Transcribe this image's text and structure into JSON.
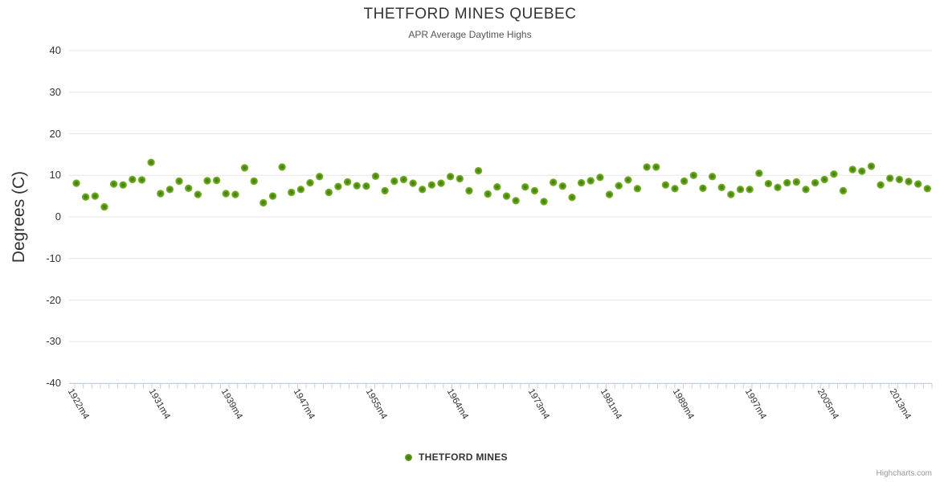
{
  "chart": {
    "title": "THETFORD MINES QUEBEC",
    "subtitle": "APR Average Daytime Highs"
  },
  "credits": {
    "label": "Highcharts.com"
  },
  "chart_data": {
    "type": "scatter",
    "title": "THETFORD MINES QUEBEC",
    "subtitle": "APR Average Daytime Highs",
    "xlabel": "",
    "ylabel": "Degrees (C)",
    "ylim": [
      -40,
      40
    ],
    "ytick_labels": [
      "40",
      "30",
      "20",
      "10",
      "0",
      "-10",
      "-20",
      "-30",
      "-40"
    ],
    "grid": true,
    "legend_position": "bottom-center",
    "x_start_year": 1922,
    "x_label_suffix": "m4",
    "xtick_years": [
      1922,
      1931,
      1939,
      1947,
      1955,
      1964,
      1973,
      1981,
      1989,
      1997,
      2005,
      2013
    ],
    "series": [
      {
        "name": "THETFORD MINES",
        "values": [
          8.1,
          4.8,
          5.0,
          2.4,
          7.9,
          7.7,
          9.0,
          8.9,
          13.1,
          5.6,
          6.6,
          8.6,
          6.9,
          5.4,
          8.7,
          8.8,
          5.6,
          5.4,
          11.8,
          8.6,
          3.4,
          5.0,
          12.0,
          5.9,
          6.6,
          8.2,
          9.7,
          5.9,
          7.3,
          8.4,
          7.5,
          7.4,
          9.8,
          6.3,
          8.6,
          9.0,
          8.1,
          6.6,
          7.7,
          8.1,
          9.7,
          9.2,
          6.3,
          11.1,
          5.5,
          7.2,
          5.0,
          3.9,
          7.2,
          6.3,
          3.7,
          8.3,
          7.4,
          4.7,
          8.2,
          8.7,
          9.5,
          5.4,
          7.5,
          8.9,
          6.8,
          12.0,
          12.0,
          7.7,
          6.8,
          8.6,
          10.0,
          6.9,
          9.7,
          7.1,
          5.4,
          6.6,
          6.6,
          10.5,
          8.0,
          7.1,
          8.2,
          8.4,
          6.6,
          8.2,
          9.0,
          10.3,
          6.3,
          11.4,
          11.0,
          12.2,
          7.7,
          9.3,
          9.0,
          8.5,
          7.9,
          6.8
        ]
      }
    ],
    "colors": {
      "marker_outer": "#7fb92d",
      "marker_mid": "#4f8c13",
      "marker_inner": "#3e7a0f",
      "grid_line": "#e6e6e6",
      "axis_line": "#c0d0e0",
      "label_text": "#333333",
      "subtitle_text": "#555555",
      "credits_text": "#999999"
    }
  }
}
